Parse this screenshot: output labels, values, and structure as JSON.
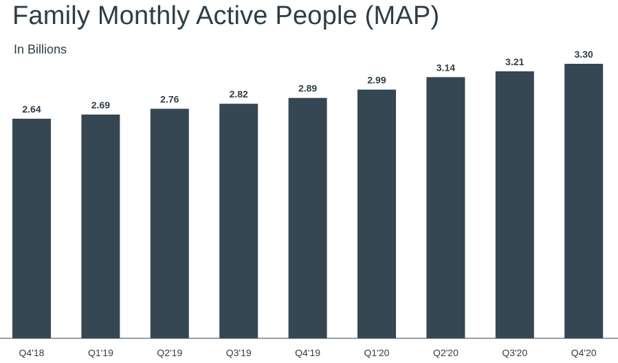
{
  "chart_data": {
    "type": "bar",
    "title": "Family Monthly Active People (MAP)",
    "subtitle": "In Billions",
    "categories": [
      "Q4'18",
      "Q1'19",
      "Q2'19",
      "Q3'19",
      "Q4'19",
      "Q1'20",
      "Q2'20",
      "Q3'20",
      "Q4'20"
    ],
    "values": [
      2.64,
      2.69,
      2.76,
      2.82,
      2.89,
      2.99,
      3.14,
      3.21,
      3.3
    ],
    "value_labels": [
      "2.64",
      "2.69",
      "2.76",
      "2.82",
      "2.89",
      "2.99",
      "3.14",
      "3.21",
      "3.30"
    ],
    "xlabel": "",
    "ylabel": "",
    "ylim": [
      0,
      3.3
    ],
    "grid": false,
    "legend": "none",
    "colors": {
      "bar": "#354753",
      "label": "#2f3d47",
      "axis": "#2f3d47"
    }
  }
}
